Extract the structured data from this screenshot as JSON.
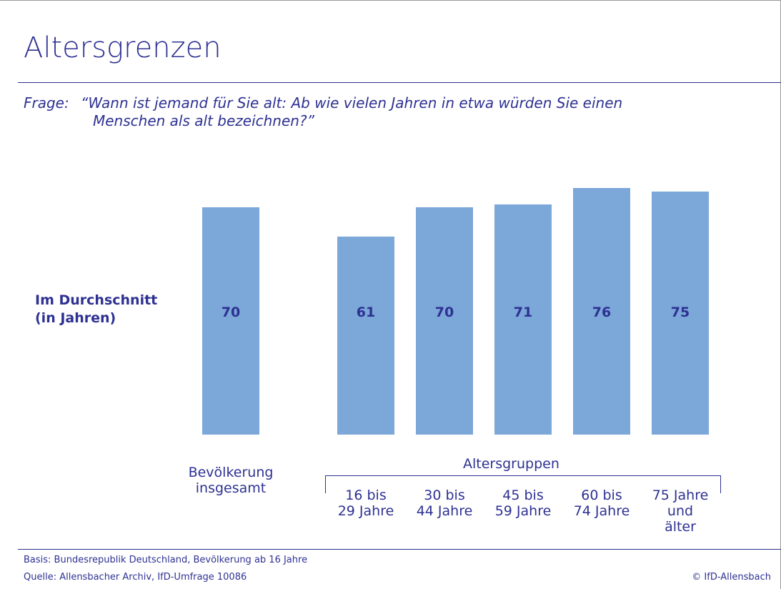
{
  "chart_data": {
    "type": "bar",
    "title": "Altersgrenzen",
    "question_label": "Frage:",
    "question": "“Wann ist jemand für Sie alt: Ab wie vielen Jahren in etwa würden Sie einen\nMenschen als alt bezeichnen?”",
    "y_label": "Im Durchschnitt\n(in Jahren)",
    "group_label": "Altersgruppen",
    "categories": [
      "Bevölkerung\ninsgesamt",
      "16 bis\n29 Jahre",
      "30 bis\n44 Jahre",
      "45 bis\n59 Jahre",
      "60 bis\n74 Jahre",
      "75 Jahre\nund\nälter"
    ],
    "values": [
      70,
      61,
      70,
      71,
      76,
      75
    ],
    "color": "#7ba7d9"
  },
  "footer": {
    "basis": "Basis: Bundesrepublik Deutschland, Bevölkerung ab 16 Jahre",
    "source": "Quelle: Allensbacher Archiv, IfD-Umfrage 10086",
    "copyright": "© IfD-Allensbach"
  }
}
